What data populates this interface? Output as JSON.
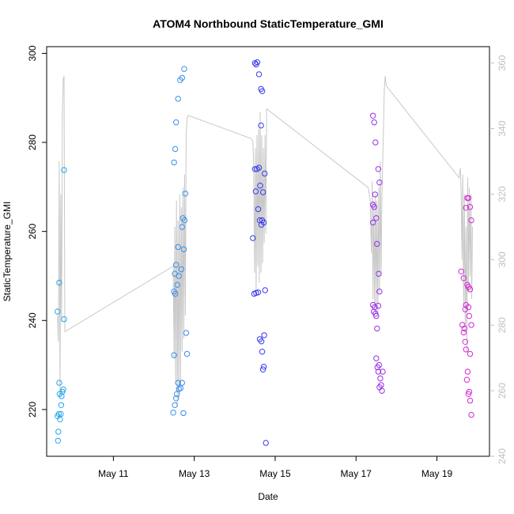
{
  "chart_data": {
    "type": "scatter",
    "title": "ATOM4 Northbound StaticTemperature_GMI",
    "xlabel": "Date",
    "ylabel": "StaticTemperature_GMI",
    "x_unit": "days since May 10 (date axis)",
    "xlim": [
      9.35,
      20.3
    ],
    "ylim": [
      209.5,
      301.5
    ],
    "y2lim": [
      240,
      365
    ],
    "x_ticks": [
      {
        "x": 11,
        "label": "May 11"
      },
      {
        "x": 13,
        "label": "May 13"
      },
      {
        "x": 15,
        "label": "May 15"
      },
      {
        "x": 17,
        "label": "May 17"
      },
      {
        "x": 19,
        "label": "May 19"
      }
    ],
    "y_ticks": [
      220,
      240,
      260,
      280,
      300
    ],
    "y2_ticks": [
      240,
      260,
      280,
      300,
      320,
      340,
      360
    ],
    "grid": false,
    "point_groups": [
      {
        "color": "#29a6e8",
        "points": [
          [
            9.62,
            218.5
          ],
          [
            9.63,
            213
          ],
          [
            9.64,
            215
          ],
          [
            9.65,
            219
          ],
          [
            9.66,
            226
          ],
          [
            9.67,
            223.5
          ],
          [
            9.68,
            217.8
          ],
          [
            9.7,
            219
          ],
          [
            9.71,
            221
          ],
          [
            9.72,
            223
          ],
          [
            9.74,
            224
          ],
          [
            9.76,
            224.5
          ],
          [
            9.62,
            242
          ],
          [
            9.66,
            248.5
          ],
          [
            9.78,
            240.3
          ],
          [
            9.78,
            273.8
          ]
        ]
      },
      {
        "color": "#3a8ee8",
        "points": [
          [
            12.48,
            219.3
          ],
          [
            12.5,
            232.2
          ],
          [
            12.52,
            221
          ],
          [
            12.55,
            222.5
          ],
          [
            12.57,
            223.5
          ],
          [
            12.6,
            226
          ],
          [
            12.62,
            224.6
          ],
          [
            12.66,
            224.8
          ],
          [
            12.7,
            226
          ],
          [
            12.73,
            219.2
          ],
          [
            12.5,
            275.5
          ],
          [
            12.53,
            278.5
          ],
          [
            12.5,
            246.5
          ],
          [
            12.53,
            246
          ],
          [
            12.52,
            250.5
          ],
          [
            12.55,
            252.5
          ],
          [
            12.58,
            248
          ],
          [
            12.6,
            256.5
          ],
          [
            12.62,
            250
          ],
          [
            12.55,
            284.5
          ],
          [
            12.6,
            289.8
          ],
          [
            12.65,
            294
          ],
          [
            12.7,
            294.5
          ],
          [
            12.75,
            296.5
          ],
          [
            12.68,
            251.5
          ],
          [
            12.7,
            261
          ],
          [
            12.72,
            263
          ],
          [
            12.74,
            256
          ],
          [
            12.76,
            262.5
          ],
          [
            12.78,
            268.5
          ],
          [
            12.8,
            237.2
          ],
          [
            12.82,
            232.5
          ]
        ]
      },
      {
        "color": "#3a3aef",
        "points": [
          [
            14.45,
            258.5
          ],
          [
            14.48,
            246
          ],
          [
            14.5,
            274
          ],
          [
            14.52,
            269
          ],
          [
            14.55,
            274
          ],
          [
            14.58,
            265
          ],
          [
            14.6,
            274.3
          ],
          [
            14.62,
            262.5
          ],
          [
            14.5,
            297.8
          ],
          [
            14.53,
            297.5
          ],
          [
            14.56,
            298
          ],
          [
            14.6,
            295.3
          ],
          [
            14.65,
            292
          ],
          [
            14.68,
            291.5
          ],
          [
            14.53,
            246.2
          ],
          [
            14.58,
            246.3
          ],
          [
            14.62,
            235.8
          ],
          [
            14.66,
            235.3
          ],
          [
            14.65,
            283.8
          ],
          [
            14.68,
            233
          ],
          [
            14.7,
            229
          ],
          [
            14.72,
            229.6
          ],
          [
            14.73,
            236.7
          ],
          [
            14.75,
            246.8
          ],
          [
            14.63,
            270.3
          ],
          [
            14.66,
            261.5
          ],
          [
            14.68,
            262.5
          ],
          [
            14.7,
            268.8
          ],
          [
            14.72,
            262
          ],
          [
            14.74,
            273
          ],
          [
            14.77,
            212.5
          ]
        ]
      },
      {
        "color": "#9a2ee8",
        "points": [
          [
            17.42,
            286
          ],
          [
            17.45,
            284.5
          ],
          [
            17.48,
            280
          ],
          [
            17.42,
            266
          ],
          [
            17.45,
            265.5
          ],
          [
            17.47,
            268.3
          ],
          [
            17.5,
            263
          ],
          [
            17.52,
            257.2
          ],
          [
            17.55,
            274
          ],
          [
            17.58,
            271
          ],
          [
            17.42,
            243.5
          ],
          [
            17.44,
            242
          ],
          [
            17.46,
            243
          ],
          [
            17.48,
            241.5
          ],
          [
            17.5,
            241
          ],
          [
            17.52,
            238.2
          ],
          [
            17.55,
            243.3
          ],
          [
            17.42,
            262
          ],
          [
            17.56,
            250.5
          ],
          [
            17.58,
            246.5
          ],
          [
            17.5,
            231.5
          ],
          [
            17.53,
            229.5
          ],
          [
            17.55,
            228.5
          ],
          [
            17.57,
            230
          ],
          [
            17.6,
            227
          ],
          [
            17.62,
            225.5
          ],
          [
            17.64,
            224.2
          ],
          [
            17.66,
            228.5
          ],
          [
            17.58,
            225
          ]
        ]
      },
      {
        "color": "#d629d6",
        "points": [
          [
            19.6,
            251
          ],
          [
            19.63,
            239
          ],
          [
            19.66,
            237.3
          ],
          [
            19.68,
            238.2
          ],
          [
            19.7,
            235.2
          ],
          [
            19.72,
            233.5
          ],
          [
            19.74,
            226.7
          ],
          [
            19.76,
            228.5
          ],
          [
            19.78,
            223.5
          ],
          [
            19.8,
            224
          ],
          [
            19.82,
            222
          ],
          [
            19.85,
            218.8
          ],
          [
            19.66,
            249.5
          ],
          [
            19.7,
            242.5
          ],
          [
            19.72,
            243.5
          ],
          [
            19.75,
            248
          ],
          [
            19.78,
            247.5
          ],
          [
            19.82,
            247
          ],
          [
            19.78,
            267.5
          ],
          [
            19.82,
            265.5
          ],
          [
            19.85,
            262.5
          ],
          [
            19.78,
            243
          ],
          [
            19.85,
            239
          ],
          [
            19.82,
            232.5
          ],
          [
            19.72,
            265.3
          ],
          [
            19.75,
            267.5
          ],
          [
            19.8,
            241
          ]
        ]
      }
    ],
    "line_series": {
      "color": "#c8c8c8",
      "axis": "right",
      "points": [
        [
          9.62,
          283
        ],
        [
          9.64,
          275
        ],
        [
          9.66,
          330
        ],
        [
          9.68,
          258
        ],
        [
          9.7,
          320
        ],
        [
          9.72,
          281
        ],
        [
          9.74,
          345
        ],
        [
          9.76,
          355
        ],
        [
          9.78,
          356
        ],
        [
          9.8,
          278
        ],
        [
          12.48,
          298
        ],
        [
          12.5,
          270
        ],
        [
          12.52,
          310
        ],
        [
          12.54,
          262
        ],
        [
          12.56,
          318
        ],
        [
          12.58,
          255
        ],
        [
          12.6,
          312
        ],
        [
          12.62,
          258
        ],
        [
          12.64,
          320
        ],
        [
          12.66,
          262
        ],
        [
          12.68,
          316
        ],
        [
          12.7,
          272
        ],
        [
          12.72,
          322
        ],
        [
          12.74,
          276
        ],
        [
          12.76,
          326
        ],
        [
          12.78,
          283
        ],
        [
          12.8,
          338
        ],
        [
          12.82,
          343
        ],
        [
          12.85,
          344
        ],
        [
          14.4,
          337
        ],
        [
          14.45,
          336
        ],
        [
          14.47,
          328
        ],
        [
          14.49,
          296
        ],
        [
          14.51,
          334
        ],
        [
          14.53,
          290
        ],
        [
          14.55,
          338
        ],
        [
          14.57,
          298
        ],
        [
          14.59,
          340
        ],
        [
          14.61,
          293
        ],
        [
          14.63,
          345
        ],
        [
          14.65,
          296
        ],
        [
          14.67,
          338
        ],
        [
          14.69,
          299
        ],
        [
          14.71,
          334
        ],
        [
          14.73,
          305
        ],
        [
          14.75,
          338
        ],
        [
          14.77,
          308
        ],
        [
          14.79,
          346
        ],
        [
          17.3,
          322
        ],
        [
          17.35,
          318
        ],
        [
          17.38,
          302
        ],
        [
          17.4,
          324
        ],
        [
          17.42,
          288
        ],
        [
          17.44,
          318
        ],
        [
          17.46,
          284
        ],
        [
          17.48,
          320
        ],
        [
          17.5,
          286
        ],
        [
          17.52,
          318
        ],
        [
          17.54,
          284
        ],
        [
          17.56,
          322
        ],
        [
          17.58,
          290
        ],
        [
          17.6,
          330
        ],
        [
          17.62,
          295
        ],
        [
          17.64,
          320
        ],
        [
          17.66,
          330
        ],
        [
          17.7,
          352
        ],
        [
          17.72,
          356
        ],
        [
          17.75,
          353
        ],
        [
          19.55,
          325
        ],
        [
          19.58,
          328
        ],
        [
          19.6,
          320
        ],
        [
          19.62,
          300
        ],
        [
          19.64,
          326
        ],
        [
          19.66,
          286
        ],
        [
          19.68,
          320
        ],
        [
          19.7,
          278
        ],
        [
          19.72,
          310
        ],
        [
          19.74,
          272
        ],
        [
          19.76,
          325
        ],
        [
          19.78,
          290
        ],
        [
          19.8,
          322
        ],
        [
          19.82,
          295
        ],
        [
          19.84,
          320
        ],
        [
          19.86,
          288
        ],
        [
          19.88,
          310
        ]
      ]
    }
  }
}
